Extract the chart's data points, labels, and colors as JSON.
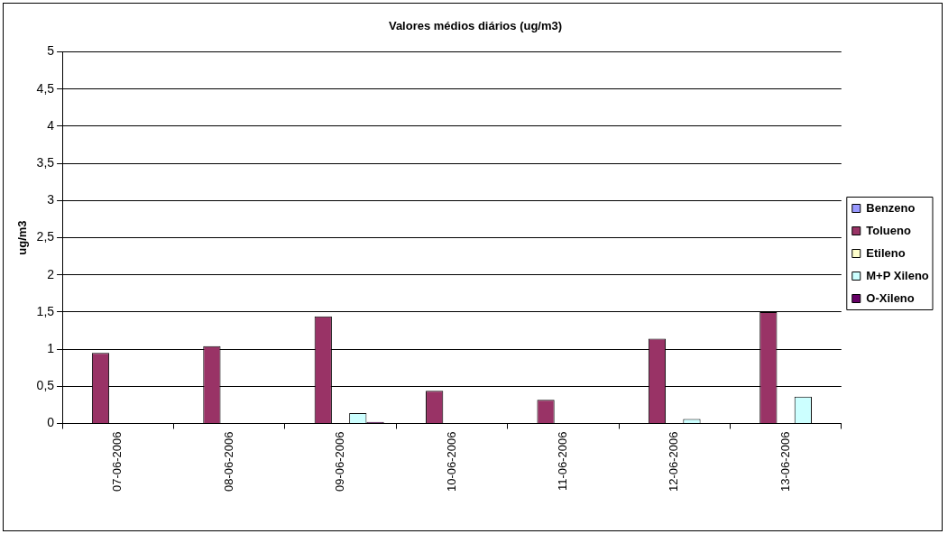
{
  "chart_data": {
    "type": "bar",
    "title": "Valores médios diários (ug/m3)",
    "ylabel": "ug/m3",
    "categories": [
      "07-06-2006",
      "08-06-2006",
      "09-06-2006",
      "10-06-2006",
      "11-06-2006",
      "12-06-2006",
      "13-06-2006"
    ],
    "series": [
      {
        "name": "Benzeno",
        "color": "#9999ff",
        "values": [
          0,
          0,
          0,
          0,
          0,
          0,
          0
        ]
      },
      {
        "name": "Tolueno",
        "color": "#993366",
        "values": [
          0.95,
          1.04,
          1.44,
          0.44,
          0.32,
          1.14,
          1.5
        ]
      },
      {
        "name": "Etileno",
        "color": "#ffffcc",
        "values": [
          0,
          0,
          0,
          0,
          0,
          0,
          0
        ]
      },
      {
        "name": "M+P Xileno",
        "color": "#ccffff",
        "values": [
          0,
          0,
          0.14,
          0,
          0,
          0.06,
          0.36
        ]
      },
      {
        "name": "O-Xileno",
        "color": "#660066",
        "values": [
          0,
          0,
          0.02,
          0,
          0,
          0,
          0
        ]
      }
    ],
    "ylim": [
      0,
      5
    ],
    "yticks": [
      0,
      {
        "value": 0.5,
        "label": "0,5"
      },
      1,
      {
        "value": 1.5,
        "label": "1,5"
      },
      2,
      {
        "value": 2.5,
        "label": "2,5"
      },
      3,
      {
        "value": 3.5,
        "label": "3,5"
      },
      4,
      {
        "value": 4.5,
        "label": "4,5"
      },
      5
    ],
    "grid": "y",
    "legend": "right"
  }
}
